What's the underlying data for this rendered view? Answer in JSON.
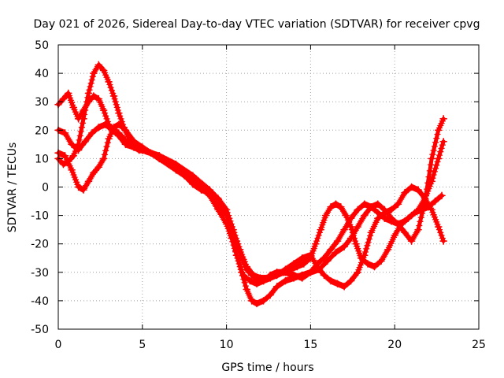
{
  "chart_data": {
    "type": "scatter",
    "title": "Day 021 of 2026, Sidereal Day-to-day VTEC variation (SDTVAR) for receiver cpvg",
    "xlabel": "GPS time / hours",
    "ylabel": "SDTVAR / TECUs",
    "xlim": [
      0,
      25
    ],
    "ylim": [
      -50,
      50
    ],
    "xticks": [
      "0",
      "5",
      "10",
      "15",
      "20",
      "25"
    ],
    "yticks": [
      "50",
      "40",
      "30",
      "20",
      "10",
      "0",
      "-10",
      "-20",
      "-30",
      "-40",
      "-50"
    ],
    "grid": true,
    "marker": "+",
    "color": "#ff0000",
    "series": [
      {
        "name": "s1",
        "x": [
          0.0,
          0.3,
          0.6,
          0.9,
          1.2,
          1.5,
          1.8,
          2.1,
          2.4,
          2.7,
          3.0,
          3.3,
          3.6,
          3.9,
          4.2,
          4.5,
          4.8,
          5.0,
          5.5,
          6.0,
          6.5,
          7.0,
          7.5,
          8.0,
          8.5,
          9.0,
          9.5,
          10.0,
          10.3,
          10.6,
          10.9,
          11.2,
          11.5,
          11.8,
          12.2,
          12.6,
          13.0,
          13.4,
          13.8,
          14.2,
          14.6,
          15.0,
          15.3,
          15.6,
          15.9,
          16.2,
          16.5,
          16.8,
          17.1,
          17.4,
          17.7,
          18.0,
          18.4,
          18.8,
          19.2,
          19.6,
          20.0,
          20.4,
          20.8,
          21.2,
          21.6,
          22.0,
          22.4,
          22.8
        ],
        "y": [
          10,
          8,
          9,
          11,
          15,
          24,
          33,
          40,
          43,
          41,
          37,
          32,
          26,
          21,
          17,
          14,
          13,
          13,
          12,
          10,
          9,
          7,
          4,
          1,
          -1,
          -2,
          -6,
          -10,
          -14,
          -19,
          -25,
          -29,
          -31,
          -32,
          -33,
          -32,
          -31,
          -30,
          -29,
          -28,
          -27,
          -25,
          -20,
          -15,
          -10,
          -7,
          -6,
          -7,
          -10,
          -14,
          -20,
          -25,
          -27,
          -28,
          -26,
          -22,
          -17,
          -13,
          -11,
          -9,
          -8,
          -7,
          -5,
          -3
        ]
      },
      {
        "name": "s2",
        "x": [
          0.0,
          0.3,
          0.6,
          0.9,
          1.2,
          1.5,
          1.8,
          2.1,
          2.4,
          2.7,
          3.0,
          3.3,
          3.6,
          3.9,
          4.2,
          4.5,
          5.0,
          6.0,
          7.0,
          8.0,
          9.0,
          9.5,
          10.0,
          10.3,
          10.6,
          10.9,
          11.2,
          11.5,
          11.8,
          12.2,
          12.6,
          13.0,
          13.5,
          14.0,
          14.5,
          15.0,
          15.5,
          16.0,
          16.5,
          17.0,
          17.4,
          17.8,
          18.2,
          18.6,
          19.0,
          19.4,
          19.8,
          20.2,
          20.6,
          21.0,
          21.4,
          21.8,
          22.2,
          22.6,
          22.9
        ],
        "y": [
          29,
          31,
          33,
          28,
          24,
          27,
          30,
          32,
          31,
          27,
          22,
          20,
          19,
          17,
          15,
          14,
          13,
          11,
          7,
          2,
          -3,
          -8,
          -13,
          -18,
          -24,
          -30,
          -36,
          -40,
          -41,
          -40,
          -38,
          -35,
          -33,
          -32,
          -31,
          -30,
          -29,
          -26,
          -23,
          -21,
          -18,
          -14,
          -10,
          -7,
          -6,
          -8,
          -11,
          -13,
          -16,
          -19,
          -15,
          -5,
          10,
          20,
          24
        ]
      },
      {
        "name": "s3",
        "x": [
          0.0,
          0.4,
          0.8,
          1.2,
          1.5,
          1.8,
          2.1,
          2.4,
          2.7,
          3.0,
          3.3,
          3.6,
          4.0,
          4.5,
          5.0,
          6.0,
          7.0,
          8.0,
          9.0,
          9.5,
          10.0,
          10.3,
          10.6,
          11.0,
          11.4,
          11.8,
          12.2,
          12.6,
          13.0,
          13.5,
          14.0,
          14.5,
          15.0,
          15.4,
          15.8,
          16.2,
          16.6,
          17.0,
          17.4,
          17.8,
          18.2,
          18.6,
          19.0,
          19.4,
          19.8,
          20.2,
          20.6,
          21.0,
          21.4,
          21.8,
          22.2,
          22.6,
          22.9
        ],
        "y": [
          12,
          11,
          6,
          0,
          -1,
          2,
          5,
          7,
          10,
          17,
          21,
          22,
          20,
          16,
          14,
          10,
          6,
          2,
          -2,
          -5,
          -9,
          -16,
          -24,
          -31,
          -33,
          -34,
          -33,
          -31,
          -30,
          -30,
          -31,
          -32,
          -30,
          -27,
          -25,
          -22,
          -19,
          -15,
          -11,
          -8,
          -6,
          -7,
          -9,
          -11,
          -12,
          -13,
          -12,
          -10,
          -8,
          -4,
          2,
          10,
          16
        ]
      },
      {
        "name": "s4",
        "x": [
          0.0,
          0.4,
          0.8,
          1.2,
          1.6,
          2.0,
          2.4,
          2.8,
          3.2,
          3.6,
          4.0,
          4.5,
          5.0,
          6.0,
          7.0,
          8.0,
          9.0,
          9.5,
          10.0,
          10.4,
          10.8,
          11.2,
          11.6,
          12.0,
          12.5,
          13.0,
          13.5,
          14.0,
          14.5,
          15.0,
          15.4,
          15.8,
          16.2,
          16.6,
          17.0,
          17.4,
          17.8,
          18.2,
          18.6,
          19.0,
          19.4,
          19.8,
          20.2,
          20.6,
          21.0,
          21.4,
          21.8,
          22.2,
          22.6,
          22.9
        ],
        "y": [
          20,
          19,
          15,
          13,
          16,
          19,
          21,
          22,
          20,
          18,
          15,
          14,
          13,
          11,
          8,
          4,
          -1,
          -4,
          -8,
          -15,
          -22,
          -28,
          -31,
          -32,
          -32,
          -31,
          -29,
          -27,
          -25,
          -24,
          -28,
          -31,
          -33,
          -34,
          -35,
          -33,
          -30,
          -24,
          -16,
          -11,
          -9,
          -8,
          -6,
          -2,
          0,
          -1,
          -4,
          -8,
          -14,
          -19
        ]
      }
    ]
  }
}
